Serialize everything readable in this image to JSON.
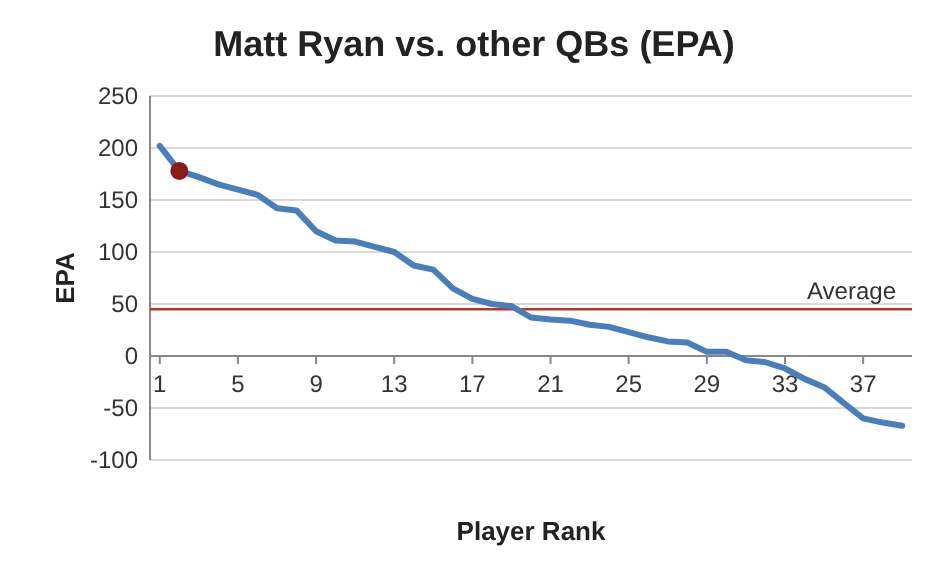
{
  "chart_data": {
    "type": "line",
    "title": "Matt Ryan vs. other QBs (EPA)",
    "xlabel": "Player Rank",
    "ylabel": "EPA",
    "xlim": [
      0.5,
      39.5
    ],
    "xticks": [
      1,
      5,
      9,
      13,
      17,
      21,
      25,
      29,
      33,
      37
    ],
    "ylim": [
      -100,
      250
    ],
    "yticks": [
      -100,
      -50,
      0,
      50,
      100,
      150,
      200,
      250
    ],
    "grid": "y",
    "marker": "none",
    "series": [
      {
        "color": "#4a7ebb",
        "x": [
          1,
          2,
          3,
          4,
          5,
          6,
          7,
          8,
          9,
          10,
          11,
          12,
          13,
          14,
          15,
          16,
          17,
          18,
          19,
          20,
          21,
          22,
          23,
          24,
          25,
          26,
          27,
          28,
          29,
          30,
          31,
          32,
          33,
          34,
          35,
          36,
          37,
          38,
          39
        ],
        "values": [
          202,
          178,
          172,
          165,
          160,
          155,
          142,
          140,
          120,
          111,
          110,
          105,
          100,
          87,
          83,
          65,
          55,
          50,
          48,
          37,
          35,
          34,
          30,
          28,
          23,
          18,
          14,
          13,
          4,
          4,
          -4,
          -6,
          -12,
          -22,
          -30,
          -45,
          -60,
          -64,
          -67
        ]
      },
      {
        "type": "scatter",
        "color": "#8b1a1a",
        "marker": "circle",
        "x": [
          2
        ],
        "values": [
          178
        ]
      }
    ],
    "ref_lines": [
      {
        "axis": "y",
        "value": 45,
        "label": "Average",
        "color": "#b03a2e"
      }
    ]
  }
}
